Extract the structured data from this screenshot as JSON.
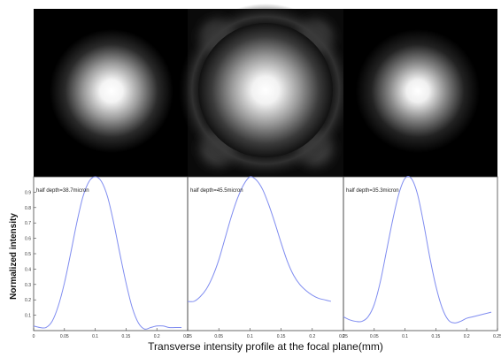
{
  "figure": {
    "xlabel": "Transverse intensity profile at the focal plane(mm)",
    "ylabel": "Normalized intensity"
  },
  "chart_data": [
    {
      "type": "line",
      "annotation": "half depth=38.7micron",
      "xlabel": "Transverse intensity profile at the focal plane(mm)",
      "ylabel": "Normalized intensity",
      "xlim": [
        0,
        0.25
      ],
      "ylim": [
        0,
        1
      ],
      "xticks": [
        "0",
        "0.05",
        "0.1",
        "0.15",
        "0.2",
        "0.25"
      ],
      "yticks": [
        "0.1",
        "0.2",
        "0.3",
        "0.4",
        "0.5",
        "0.6",
        "0.7",
        "0.8",
        "0.9"
      ],
      "color": "#7f8cf0",
      "x": [
        0,
        0.01,
        0.02,
        0.03,
        0.04,
        0.05,
        0.06,
        0.07,
        0.08,
        0.09,
        0.1,
        0.11,
        0.12,
        0.13,
        0.14,
        0.15,
        0.16,
        0.17,
        0.18,
        0.19,
        0.2,
        0.21,
        0.22,
        0.23,
        0.24
      ],
      "y": [
        0.03,
        0.02,
        0.02,
        0.06,
        0.16,
        0.31,
        0.5,
        0.7,
        0.87,
        0.97,
        1.0,
        0.97,
        0.87,
        0.7,
        0.5,
        0.31,
        0.15,
        0.05,
        0.01,
        0.02,
        0.03,
        0.03,
        0.02,
        0.02,
        0.02
      ]
    },
    {
      "type": "line",
      "annotation": "half depth=45.5micron",
      "xlim": [
        0,
        0.25
      ],
      "ylim": [
        0,
        1
      ],
      "xticks": [
        "0",
        "0.05",
        "0.1",
        "0.15",
        "0.2",
        "0.25"
      ],
      "color": "#7f8cf0",
      "x": [
        0,
        0.01,
        0.02,
        0.03,
        0.04,
        0.05,
        0.06,
        0.07,
        0.08,
        0.09,
        0.1,
        0.11,
        0.12,
        0.13,
        0.14,
        0.15,
        0.16,
        0.17,
        0.18,
        0.19,
        0.2,
        0.21,
        0.22,
        0.23
      ],
      "y": [
        0.19,
        0.19,
        0.22,
        0.27,
        0.35,
        0.46,
        0.6,
        0.74,
        0.86,
        0.95,
        1.0,
        0.98,
        0.92,
        0.82,
        0.7,
        0.57,
        0.45,
        0.36,
        0.3,
        0.26,
        0.23,
        0.21,
        0.2,
        0.19
      ]
    },
    {
      "type": "line",
      "annotation": "half depth=35.3micron",
      "xlim": [
        0,
        0.25
      ],
      "ylim": [
        0,
        1
      ],
      "xticks": [
        "0",
        "0.05",
        "0.1",
        "0.15",
        "0.2",
        "0.25"
      ],
      "color": "#7f8cf0",
      "x": [
        0,
        0.01,
        0.02,
        0.03,
        0.04,
        0.05,
        0.06,
        0.07,
        0.08,
        0.09,
        0.1,
        0.11,
        0.12,
        0.13,
        0.14,
        0.15,
        0.16,
        0.17,
        0.18,
        0.19,
        0.2,
        0.21,
        0.22,
        0.23,
        0.24
      ],
      "y": [
        0.09,
        0.07,
        0.06,
        0.06,
        0.09,
        0.17,
        0.32,
        0.52,
        0.72,
        0.89,
        0.99,
        0.99,
        0.89,
        0.7,
        0.48,
        0.29,
        0.15,
        0.07,
        0.05,
        0.06,
        0.08,
        0.09,
        0.1,
        0.11,
        0.12
      ]
    }
  ]
}
